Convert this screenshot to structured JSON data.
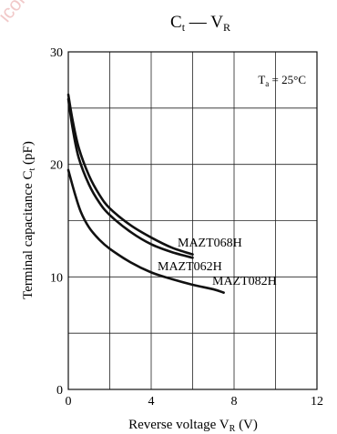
{
  "watermark": "icon.",
  "chart_data": {
    "type": "line",
    "title": {
      "main": "C",
      "main_sub": "t",
      "sep": " — ",
      "var": "V",
      "var_sub": "R"
    },
    "xlabel": {
      "text": "Reverse voltage  V",
      "sub": "R",
      "unit": "  (V)"
    },
    "ylabel": {
      "text": "Terminal capacitance  C",
      "sub": "t",
      "unit": "  (pF)"
    },
    "annotation": {
      "text": "T",
      "sub": "a",
      "rest": " = 25°C"
    },
    "xlim": [
      0,
      12
    ],
    "ylim": [
      0,
      30
    ],
    "xticks": [
      0,
      4,
      8,
      12
    ],
    "yticks": [
      0,
      10,
      20,
      30
    ],
    "grid": true,
    "colors": {
      "curve": "#111111",
      "grid": "#222222",
      "watermark": "#f1c9c9"
    },
    "series": [
      {
        "name": "MAZT068H",
        "x": [
          0,
          0.2,
          0.5,
          1,
          1.5,
          2,
          3,
          4,
          5,
          6
        ],
        "y": [
          26.2,
          24,
          21.5,
          19,
          17.3,
          16.1,
          14.6,
          13.5,
          12.6,
          12.0
        ]
      },
      {
        "name": "MAZT062H",
        "x": [
          0,
          0.2,
          0.5,
          1,
          1.5,
          2,
          3,
          4,
          5,
          6
        ],
        "y": [
          25.8,
          23.3,
          20.6,
          18.2,
          16.6,
          15.5,
          14.0,
          12.9,
          12.2,
          11.7
        ]
      },
      {
        "name": "MAZT082H",
        "x": [
          0,
          0.3,
          0.6,
          1,
          1.5,
          2,
          3,
          4,
          5,
          6,
          7,
          7.5
        ],
        "y": [
          19.5,
          17.5,
          15.8,
          14.4,
          13.3,
          12.5,
          11.3,
          10.4,
          9.8,
          9.3,
          8.9,
          8.6
        ]
      }
    ]
  }
}
